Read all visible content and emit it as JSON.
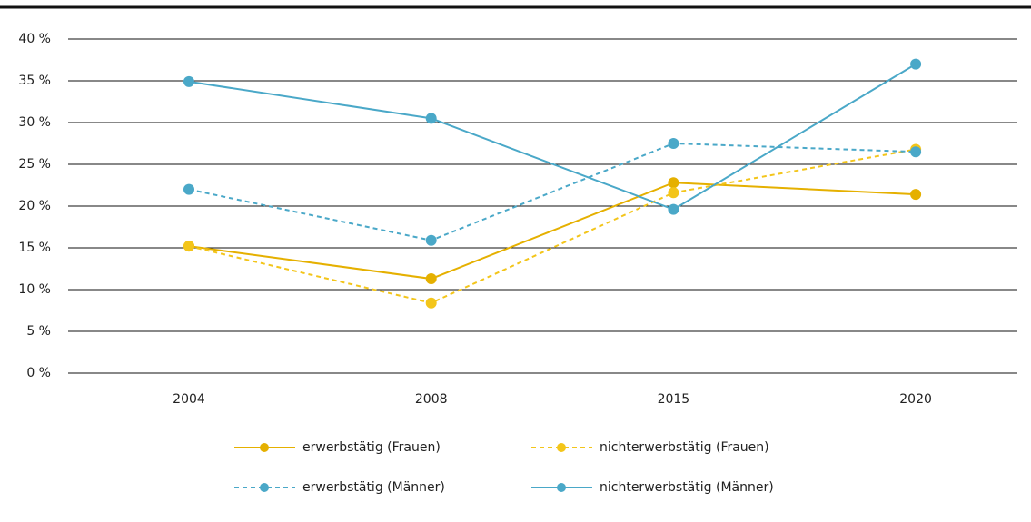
{
  "chart_data": {
    "type": "line",
    "categories": [
      "2004",
      "2008",
      "2015",
      "2020"
    ],
    "series": [
      {
        "name": "erwerbstätig (Frauen)",
        "color": "#e5b000",
        "line_style": "solid",
        "values": [
          15.2,
          11.3,
          22.8,
          21.4
        ]
      },
      {
        "name": "nichterwerbstätig (Frauen)",
        "color": "#f3c51a",
        "line_style": "dashed",
        "values": [
          15.2,
          8.4,
          21.6,
          26.8
        ]
      },
      {
        "name": "erwerbstätig (Männer)",
        "color": "#4aa8c8",
        "line_style": "dashed",
        "values": [
          22.0,
          15.9,
          27.5,
          26.5
        ]
      },
      {
        "name": "nichterwerbstätig (Männer)",
        "color": "#4aa8c8",
        "line_style": "solid",
        "values": [
          34.9,
          30.5,
          19.6,
          37.0
        ]
      }
    ],
    "ylim": [
      0,
      40
    ],
    "yticks": [
      {
        "value": 0,
        "label": "0 %"
      },
      {
        "value": 5,
        "label": "5 %"
      },
      {
        "value": 10,
        "label": "10 %"
      },
      {
        "value": 15,
        "label": "15 %"
      },
      {
        "value": 20,
        "label": "20 %"
      },
      {
        "value": 25,
        "label": "25 %"
      },
      {
        "value": 30,
        "label": "30 %"
      },
      {
        "value": 35,
        "label": "35 %"
      },
      {
        "value": 40,
        "label": "40 %"
      }
    ],
    "grid": true,
    "legend": "bottom"
  }
}
